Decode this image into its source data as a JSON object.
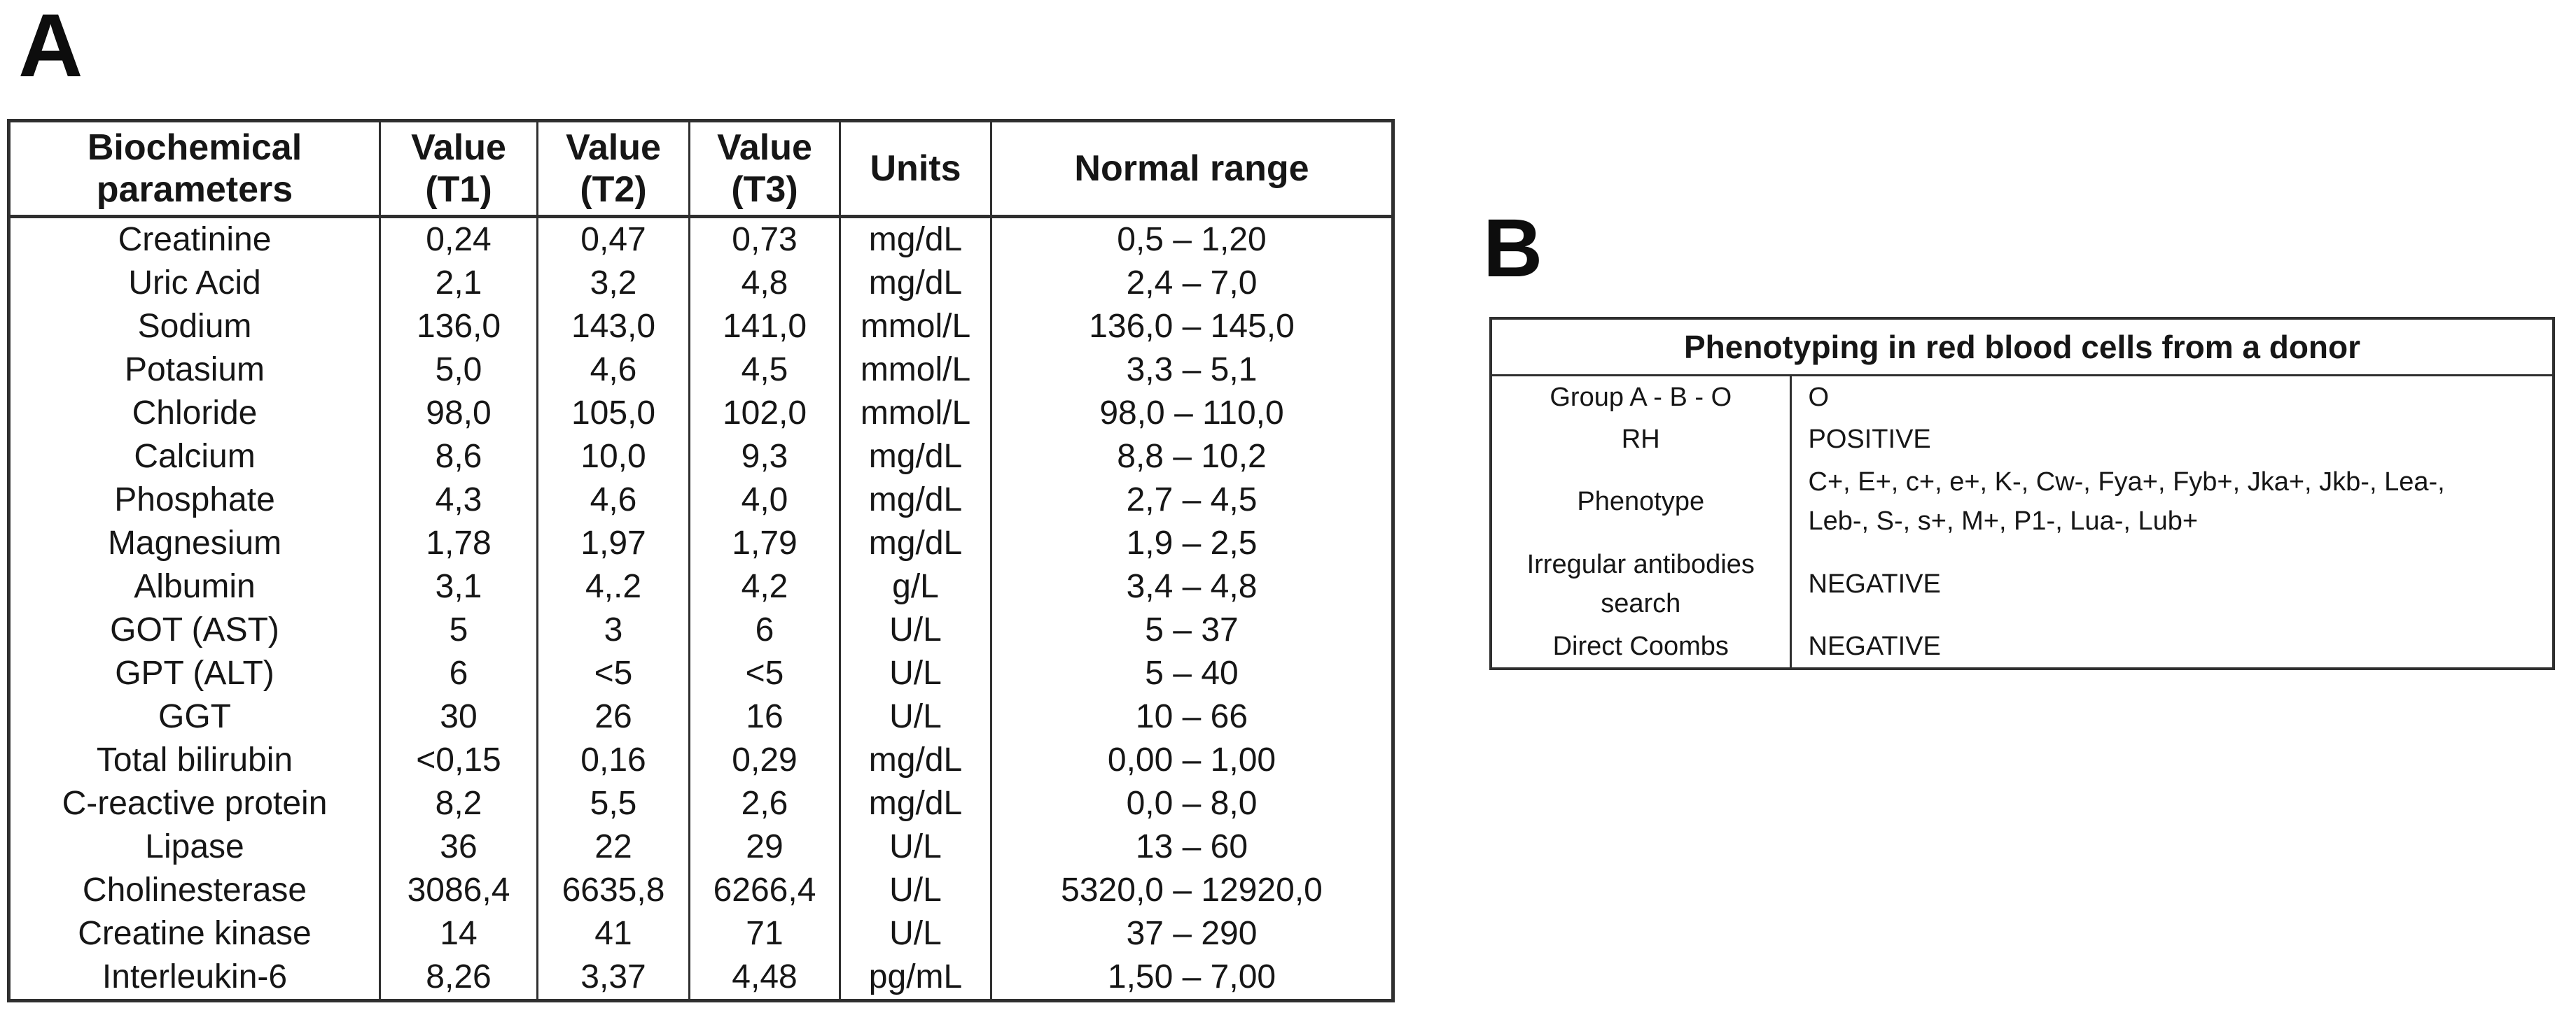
{
  "panels": {
    "a_label": "A",
    "b_label": "B"
  },
  "colors": {
    "text": "#161616",
    "border": "#2f2f2f",
    "background": "#ffffff"
  },
  "biochem_table": {
    "headers": {
      "parameter": [
        "Biochemical",
        "parameters"
      ],
      "t1": [
        "Value",
        "(T1)"
      ],
      "t2": [
        "Value",
        "(T2)"
      ],
      "t3": [
        "Value",
        "(T3)"
      ],
      "units": [
        "Units"
      ],
      "normal_range": [
        "Normal range"
      ]
    },
    "rows": [
      [
        "Creatinine",
        "0,24",
        "0,47",
        "0,73",
        "mg/dL",
        "0,5 – 1,20"
      ],
      [
        "Uric Acid",
        "2,1",
        "3,2",
        "4,8",
        "mg/dL",
        "2,4 – 7,0"
      ],
      [
        "Sodium",
        "136,0",
        "143,0",
        "141,0",
        "mmol/L",
        "136,0 – 145,0"
      ],
      [
        "Potasium",
        "5,0",
        "4,6",
        "4,5",
        "mmol/L",
        "3,3 – 5,1"
      ],
      [
        "Chloride",
        "98,0",
        "105,0",
        "102,0",
        "mmol/L",
        "98,0 – 110,0"
      ],
      [
        "Calcium",
        "8,6",
        "10,0",
        "9,3",
        "mg/dL",
        "8,8 – 10,2"
      ],
      [
        "Phosphate",
        "4,3",
        "4,6",
        "4,0",
        "mg/dL",
        "2,7 – 4,5"
      ],
      [
        "Magnesium",
        "1,78",
        "1,97",
        "1,79",
        "mg/dL",
        "1,9 – 2,5"
      ],
      [
        "Albumin",
        "3,1",
        "4,.2",
        "4,2",
        "g/L",
        "3,4 – 4,8"
      ],
      [
        "GOT (AST)",
        "5",
        "3",
        "6",
        "U/L",
        "5 – 37"
      ],
      [
        "GPT (ALT)",
        "6",
        "<5",
        "<5",
        "U/L",
        "5 – 40"
      ],
      [
        "GGT",
        "30",
        "26",
        "16",
        "U/L",
        "10 – 66"
      ],
      [
        "Total bilirubin",
        "<0,15",
        "0,16",
        "0,29",
        "mg/dL",
        "0,00 – 1,00"
      ],
      [
        "C-reactive protein",
        "8,2",
        "5,5",
        "2,6",
        "mg/dL",
        "0,0 – 8,0"
      ],
      [
        "Lipase",
        "36",
        "22",
        "29",
        "U/L",
        "13 – 60"
      ],
      [
        "Cholinesterase",
        "3086,4",
        "6635,8",
        "6266,4",
        "U/L",
        "5320,0 – 12920,0"
      ],
      [
        "Creatine kinase",
        "14",
        "41",
        "71",
        "U/L",
        "37 – 290"
      ],
      [
        "Interleukin-6",
        "8,26",
        "3,37",
        "4,48",
        "pg/mL",
        "1,50 – 7,00"
      ]
    ]
  },
  "phenotyping_table": {
    "title": "Phenotyping in red blood cells from a donor",
    "rows": [
      {
        "label": [
          "Group A - B - O"
        ],
        "value": [
          "O"
        ]
      },
      {
        "label": [
          "RH"
        ],
        "value": [
          "POSITIVE"
        ]
      },
      {
        "label": [
          "Phenotype"
        ],
        "value": [
          "C+, E+, c+, e+, K-, Cw-, Fya+, Fyb+, Jka+, Jkb-, Lea-,",
          "Leb-, S-, s+, M+, P1-, Lua-, Lub+"
        ]
      },
      {
        "label": [
          "Irregular antibodies",
          "search"
        ],
        "value": [
          "NEGATIVE"
        ]
      },
      {
        "label": [
          "Direct Coombs"
        ],
        "value": [
          "NEGATIVE"
        ]
      }
    ]
  }
}
